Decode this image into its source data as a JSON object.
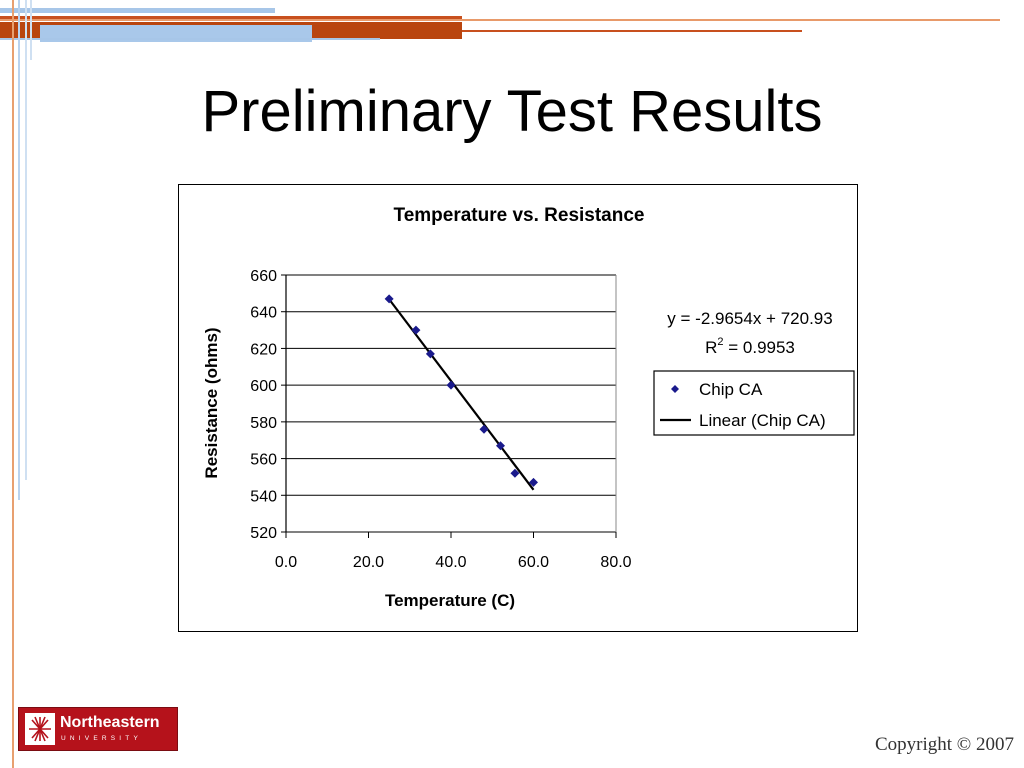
{
  "slide": {
    "title": "Preliminary Test Results",
    "copyright": "Copyright © 2007",
    "logo": {
      "name": "Northeastern",
      "sub": "UNIVERSITY"
    }
  },
  "colors": {
    "orange": "#c8501e",
    "light_blue": "#a7c6e8",
    "marker": "#1a1a8c",
    "logo_red": "#b5121b"
  },
  "chart_data": {
    "type": "scatter",
    "title": "Temperature vs. Resistance",
    "xlabel": "Temperature (C)",
    "ylabel": "Resistance (ohms)",
    "xlim": [
      0,
      80
    ],
    "ylim": [
      520,
      660
    ],
    "xticks": [
      "0.0",
      "20.0",
      "40.0",
      "60.0",
      "80.0"
    ],
    "yticks": [
      "520",
      "540",
      "560",
      "580",
      "600",
      "620",
      "640",
      "660"
    ],
    "grid": "horizontal",
    "legend": "right",
    "series": [
      {
        "name": "Chip CA",
        "marker": "diamond",
        "x": [
          25.0,
          31.5,
          35.0,
          40.0,
          48.0,
          52.0,
          55.5,
          60.0
        ],
        "y": [
          647,
          630,
          617,
          600,
          576,
          567,
          552,
          547
        ]
      },
      {
        "name": "Linear (Chip CA)",
        "type": "line",
        "x": [
          25.0,
          60.0
        ],
        "y": [
          646.8,
          543.0
        ]
      }
    ],
    "equation": "y = -2.9654x + 720.93",
    "r2_prefix": "R",
    "r2_exp": "2",
    "r2_value": " = 0.9953"
  }
}
